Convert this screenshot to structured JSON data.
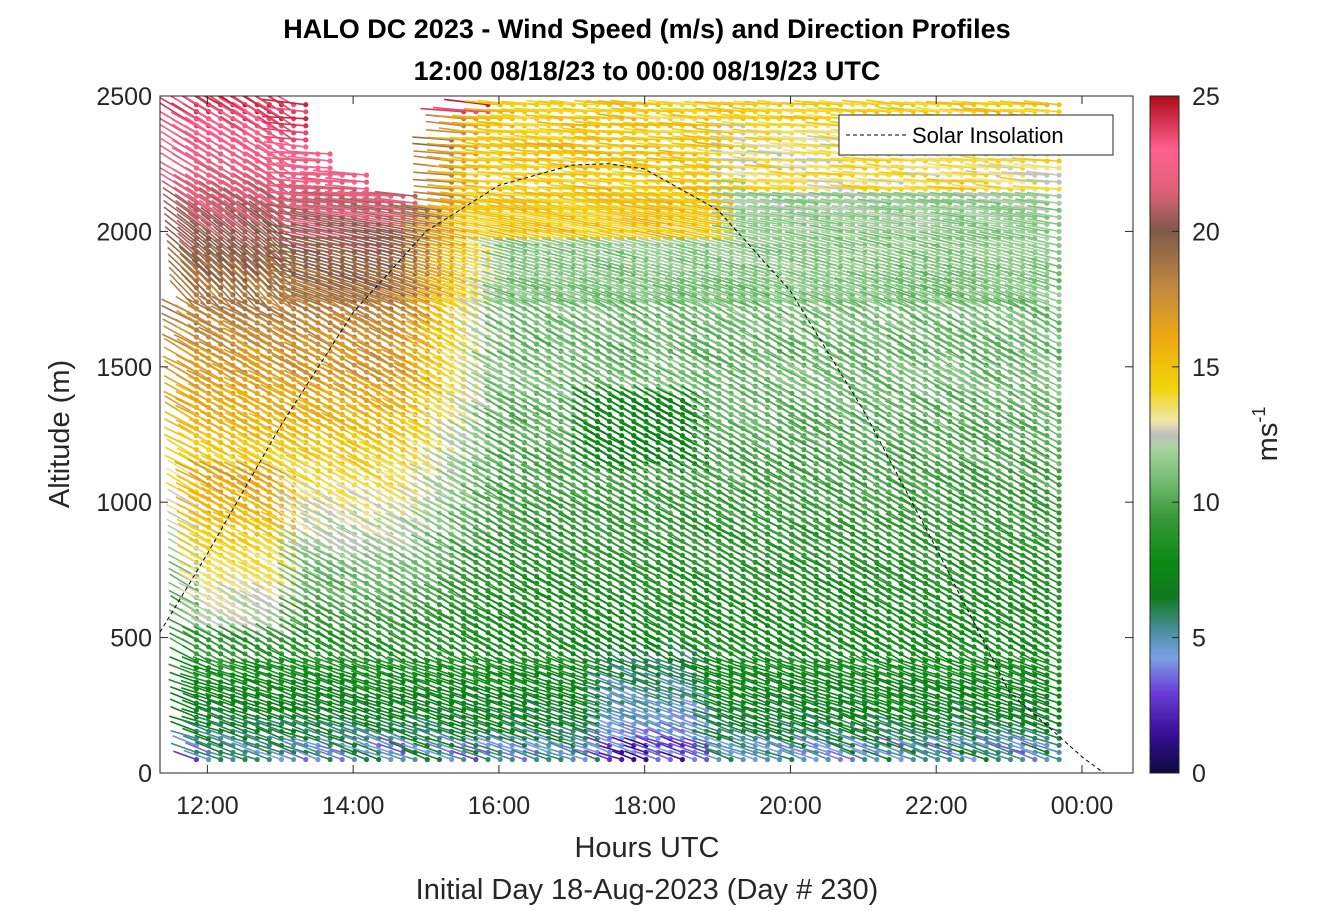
{
  "chart_data": {
    "type": "wind-barb-profile",
    "title": "HALO DC 2023 - Wind Speed (m/s) and Direction Profiles",
    "subtitle": "12:00 08/18/23 to 00:00 08/19/23  UTC",
    "xlabel": "Hours UTC",
    "xlabel2": "Initial Day 18-Aug-2023 (Day # 230)",
    "ylabel": "Altitude (m)",
    "x_ticks": [
      "12:00",
      "14:00",
      "16:00",
      "18:00",
      "20:00",
      "22:00",
      "00:00"
    ],
    "x_tick_hours": [
      12,
      14,
      16,
      18,
      20,
      22,
      24
    ],
    "xlim_hours": [
      11.35,
      24.7
    ],
    "y_ticks": [
      "0",
      "500",
      "1000",
      "1500",
      "2000",
      "2500"
    ],
    "ylim": [
      0,
      2500
    ],
    "colorbar": {
      "label": "ms-1",
      "label_base": "ms",
      "label_exp": "-1",
      "ticks": [
        "0",
        "5",
        "10",
        "15",
        "20",
        "25"
      ],
      "range": [
        0,
        25
      ]
    },
    "legend": {
      "entries": [
        "Solar Insolation"
      ],
      "placement": "top-right"
    },
    "solar_insolation": {
      "hours": [
        11.35,
        12.0,
        13.0,
        14.0,
        15.0,
        16.0,
        17.0,
        17.5,
        18.0,
        19.0,
        20.0,
        21.0,
        22.0,
        23.0,
        24.0,
        24.3,
        24.7
      ],
      "altitude_equiv": [
        520,
        810,
        1280,
        1700,
        2000,
        2170,
        2245,
        2250,
        2230,
        2080,
        1780,
        1340,
        830,
        300,
        60,
        0,
        0
      ]
    },
    "profiles": {
      "first_hour": 11.85,
      "last_hour": 23.8,
      "interval_hours": 0.1667,
      "altitude_step_m": 26,
      "min_altitude_m": 50,
      "max_altitude_m": 2500
    }
  }
}
